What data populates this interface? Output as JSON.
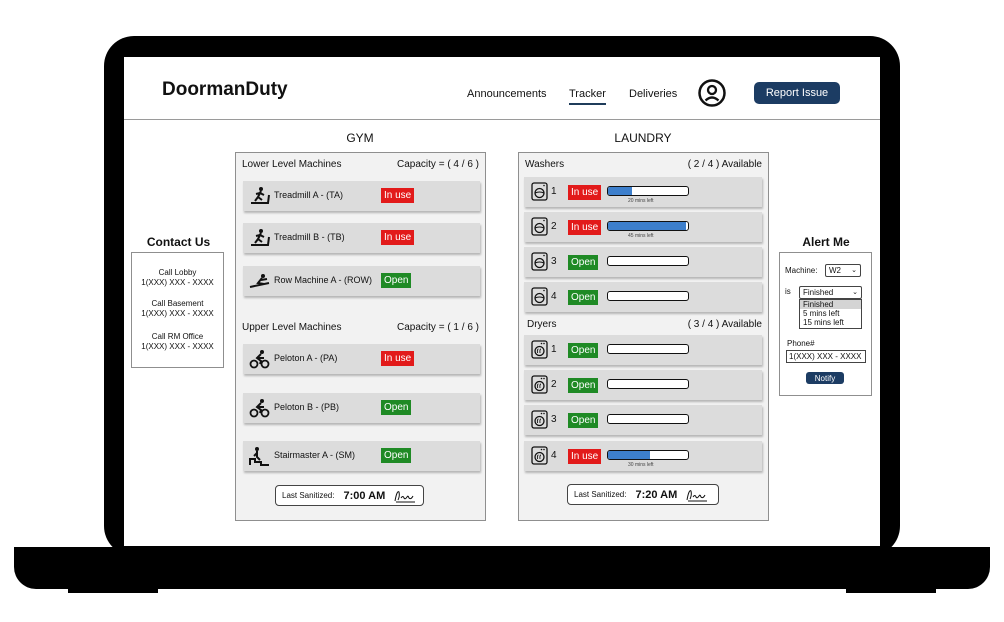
{
  "app": {
    "name": "DoormanDuty"
  },
  "nav": {
    "announcements": "Announcements",
    "tracker": "Tracker",
    "deliveries": "Deliveries",
    "report": "Report Issue"
  },
  "gym": {
    "title": "GYM",
    "lower": {
      "heading": "Lower Level Machines",
      "capacity": "Capacity = ( 4 / 6 )",
      "machines": [
        {
          "label": "Treadmill A - (TA)",
          "status": "In use",
          "icon": "treadmill-icon"
        },
        {
          "label": "Treadmill B - (TB)",
          "status": "In use",
          "icon": "treadmill-icon"
        },
        {
          "label": "Row Machine A - (ROW)",
          "status": "Open",
          "icon": "rowing-icon"
        }
      ]
    },
    "upper": {
      "heading": "Upper Level Machines",
      "capacity": "Capacity = ( 1 / 6 )",
      "machines": [
        {
          "label": "Peloton A - (PA)",
          "status": "In use",
          "icon": "bike-icon"
        },
        {
          "label": "Peloton B - (PB)",
          "status": "Open",
          "icon": "bike-icon"
        },
        {
          "label": "Stairmaster A - (SM)",
          "status": "Open",
          "icon": "stairs-icon"
        }
      ]
    },
    "sanitized": {
      "label": "Last Sanitized:",
      "time": "7:00 AM"
    }
  },
  "laundry": {
    "title": "LAUNDRY",
    "washers": {
      "heading": "Washers",
      "available": "( 2 / 4 ) Available",
      "units": [
        {
          "num": "1",
          "status": "In use",
          "progress": 0.3,
          "note": "20 mins left",
          "icon": "washer-icon"
        },
        {
          "num": "2",
          "status": "In use",
          "progress": 0.97,
          "note": "45 mins left",
          "icon": "washer-icon"
        },
        {
          "num": "3",
          "status": "Open",
          "progress": 0,
          "note": "",
          "icon": "washer-icon"
        },
        {
          "num": "4",
          "status": "Open",
          "progress": 0,
          "note": "",
          "icon": "washer-icon"
        }
      ]
    },
    "dryers": {
      "heading": "Dryers",
      "available": "( 3 / 4 ) Available",
      "units": [
        {
          "num": "1",
          "status": "Open",
          "progress": 0,
          "note": "",
          "icon": "dryer-icon"
        },
        {
          "num": "2",
          "status": "Open",
          "progress": 0,
          "note": "",
          "icon": "dryer-icon"
        },
        {
          "num": "3",
          "status": "Open",
          "progress": 0,
          "note": "",
          "icon": "dryer-icon"
        },
        {
          "num": "4",
          "status": "In use",
          "progress": 0.52,
          "note": "30 mins left",
          "icon": "dryer-icon"
        }
      ]
    },
    "sanitized": {
      "label": "Last Sanitized:",
      "time": "7:20 AM"
    }
  },
  "contact": {
    "title": "Contact Us",
    "items": [
      {
        "label": "Call Lobby",
        "number": "1(XXX) XXX - XXXX"
      },
      {
        "label": "Call Basement",
        "number": "1(XXX) XXX - XXXX"
      },
      {
        "label": "Call RM Office",
        "number": "1(XXX) XXX - XXXX"
      }
    ]
  },
  "alert": {
    "title": "Alert Me",
    "machine_label": "Machine:",
    "machine_value": "W2",
    "is_label": "is",
    "condition_value": "Finished",
    "options": [
      "Finished",
      "5 mins left",
      "15 mins left"
    ],
    "phone_label": "Phone#",
    "phone_value": "1(XXX) XXX - XXXX",
    "notify": "Notify"
  },
  "colors": {
    "in_use": "#e21a1a",
    "open": "#1f8a25",
    "accent": "#1c3c63",
    "progress": "#3d7fcc"
  }
}
